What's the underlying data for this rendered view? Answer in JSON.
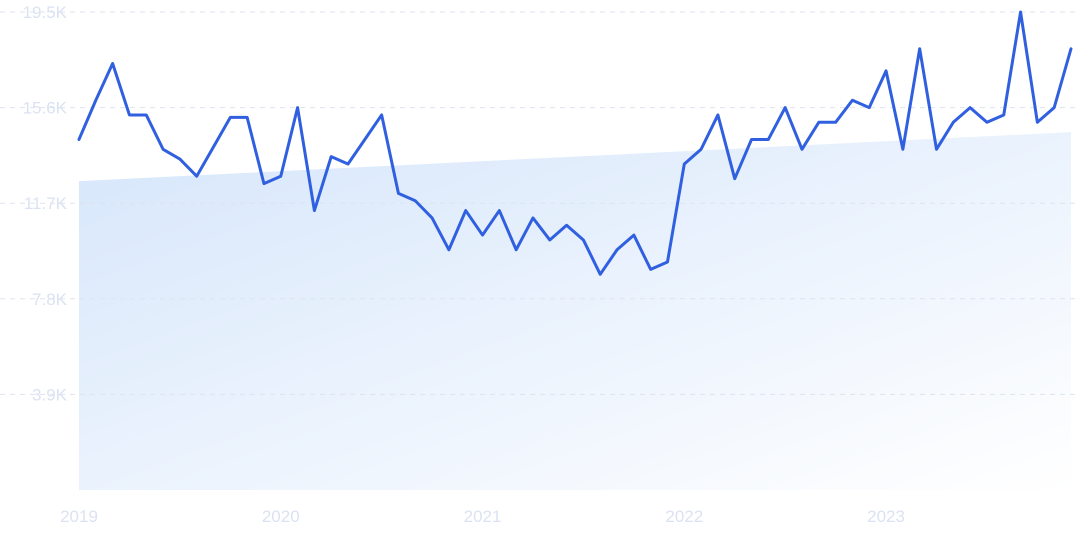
{
  "chart_data": {
    "type": "line",
    "title": "",
    "xlabel": "",
    "ylabel": "",
    "ylim": [
      0,
      19500
    ],
    "grid": true,
    "y_ticks": [
      {
        "value": 3900,
        "label": "3.9K"
      },
      {
        "value": 7800,
        "label": "7.8K"
      },
      {
        "value": 11700,
        "label": "11.7K"
      },
      {
        "value": 15600,
        "label": "15.6K"
      },
      {
        "value": 19500,
        "label": "19.5K"
      }
    ],
    "x_ticks": [
      {
        "value": 0,
        "label": "2019"
      },
      {
        "value": 12,
        "label": "2020"
      },
      {
        "value": 24,
        "label": "2021"
      },
      {
        "value": 36,
        "label": "2022"
      },
      {
        "value": 48,
        "label": "2023"
      }
    ],
    "x_domain": [
      0,
      59
    ],
    "series": [
      {
        "color": "#3060e0",
        "values": [
          14300,
          15900,
          17400,
          15300,
          15300,
          13900,
          13500,
          12800,
          14000,
          15200,
          15200,
          12500,
          12800,
          15600,
          11400,
          13600,
          13300,
          14300,
          15300,
          12100,
          11800,
          11100,
          9800,
          11400,
          10400,
          11400,
          9800,
          11100,
          10200,
          10800,
          10200,
          8800,
          9800,
          10400,
          9000,
          9300,
          13300,
          13900,
          15300,
          12700,
          14300,
          14300,
          15600,
          13900,
          15000,
          15000,
          15900,
          15600,
          17100,
          13900,
          18000,
          13900,
          15000,
          15600,
          15000,
          15300,
          19500,
          15000,
          15600,
          18000
        ]
      }
    ],
    "trend_band": {
      "start": 12600,
      "end": 14600,
      "color": "#d6e6fb"
    }
  }
}
